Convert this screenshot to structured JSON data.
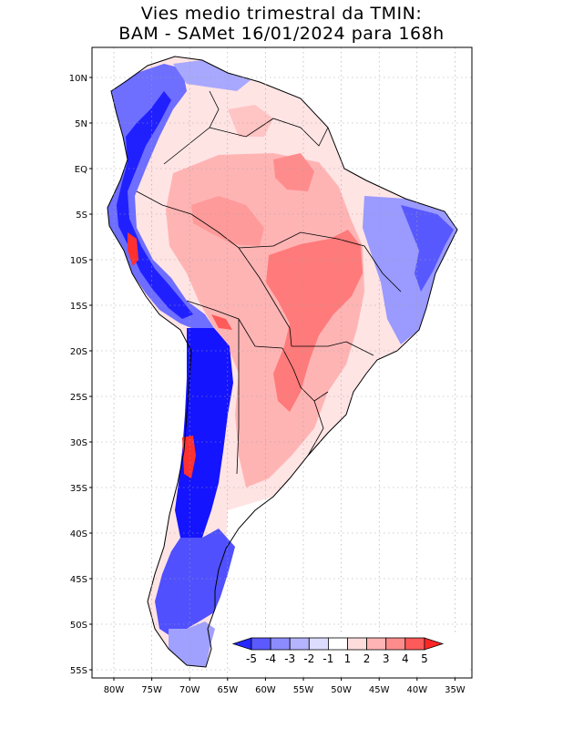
{
  "title": {
    "line1": "Vies medio trimestral da TMIN:",
    "line2": "BAM - SAMet 16/01/2024  para 168h"
  },
  "lat_labels": [
    "10N",
    "5N",
    "EQ",
    "5S",
    "10S",
    "15S",
    "20S",
    "25S",
    "30S",
    "35S",
    "40S",
    "45S",
    "50S",
    "55S"
  ],
  "lon_labels": [
    "80W",
    "75W",
    "70W",
    "65W",
    "60W",
    "55W",
    "50W",
    "45W",
    "40W",
    "35W"
  ],
  "colorbar": {
    "labels": [
      "-5",
      "-4",
      "-3",
      "-2",
      "-1",
      "1",
      "2",
      "3",
      "4",
      "5"
    ],
    "colors": [
      "#2626ff",
      "#5a5aff",
      "#8c8cff",
      "#b4b4ff",
      "#dcdcff",
      "#ffffff",
      "#ffdcdc",
      "#ffb4b4",
      "#ff8c8c",
      "#ff5a5a",
      "#ff2626"
    ]
  },
  "colors": {
    "strong_cold": "#1a1aff",
    "cold": "#7a7aff",
    "light_cold": "#c8c8ff",
    "light_warm": "#ffd6d6",
    "warm": "#ff9a9a",
    "strong_warm": "#ff3030",
    "grid": "#9a9a9a",
    "border": "#000000"
  }
}
